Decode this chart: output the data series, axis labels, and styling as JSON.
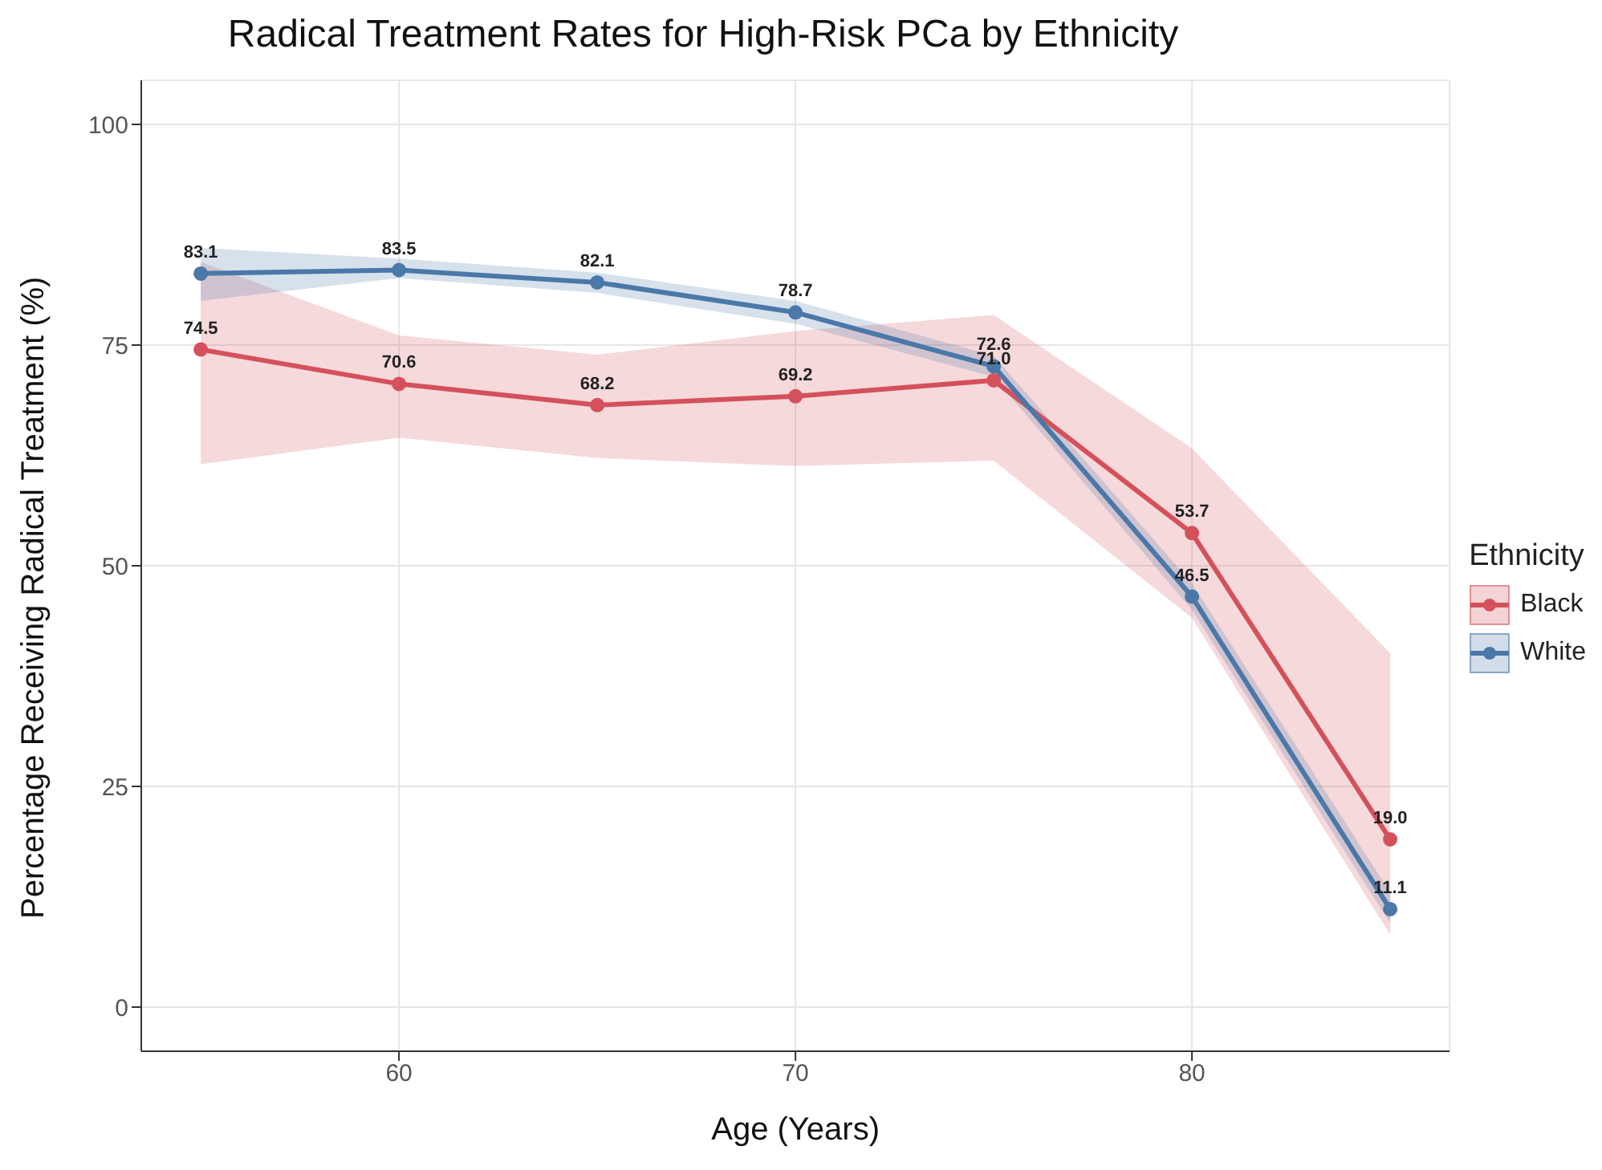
{
  "chart_data": {
    "type": "line",
    "title": "Radical Treatment Rates for High-Risk PCa by Ethnicity",
    "xlabel": "Age (Years)",
    "ylabel": "Percentage Receiving Radical Treatment (%)",
    "legend_title": "Ethnicity",
    "x": [
      55,
      60,
      65,
      70,
      75,
      80,
      85
    ],
    "series": [
      {
        "name": "Black",
        "color": "#d4515c",
        "values": [
          74.5,
          70.6,
          68.2,
          69.2,
          71.0,
          53.7,
          19.0
        ],
        "value_labels": [
          "74.5",
          "70.6",
          "68.2",
          "69.2",
          "71.0",
          "53.7",
          "19.0"
        ],
        "lower": [
          61.5,
          64.5,
          62.2,
          61.3,
          61.9,
          44.1,
          8.2
        ],
        "upper": [
          84.4,
          76.1,
          73.9,
          76.6,
          78.4,
          63.3,
          40.1
        ]
      },
      {
        "name": "White",
        "color": "#4a78a8",
        "values": [
          83.1,
          83.5,
          82.1,
          78.7,
          72.6,
          46.5,
          11.1
        ],
        "value_labels": [
          "83.1",
          "83.5",
          "82.1",
          "78.7",
          "72.6",
          "46.5",
          "11.1"
        ],
        "lower": [
          80.0,
          82.6,
          80.9,
          77.4,
          71.4,
          45.0,
          9.5
        ],
        "upper": [
          86.0,
          84.8,
          83.2,
          80.0,
          73.8,
          48.0,
          13.0
        ]
      }
    ],
    "xlim": [
      53.5,
      86.5
    ],
    "xticks": [
      60,
      70,
      80
    ],
    "ylim": [
      -5,
      105
    ],
    "yticks": [
      0,
      25,
      50,
      75,
      100
    ],
    "grid": true,
    "legend": "right",
    "marker": "circle",
    "line_style": "solid"
  }
}
